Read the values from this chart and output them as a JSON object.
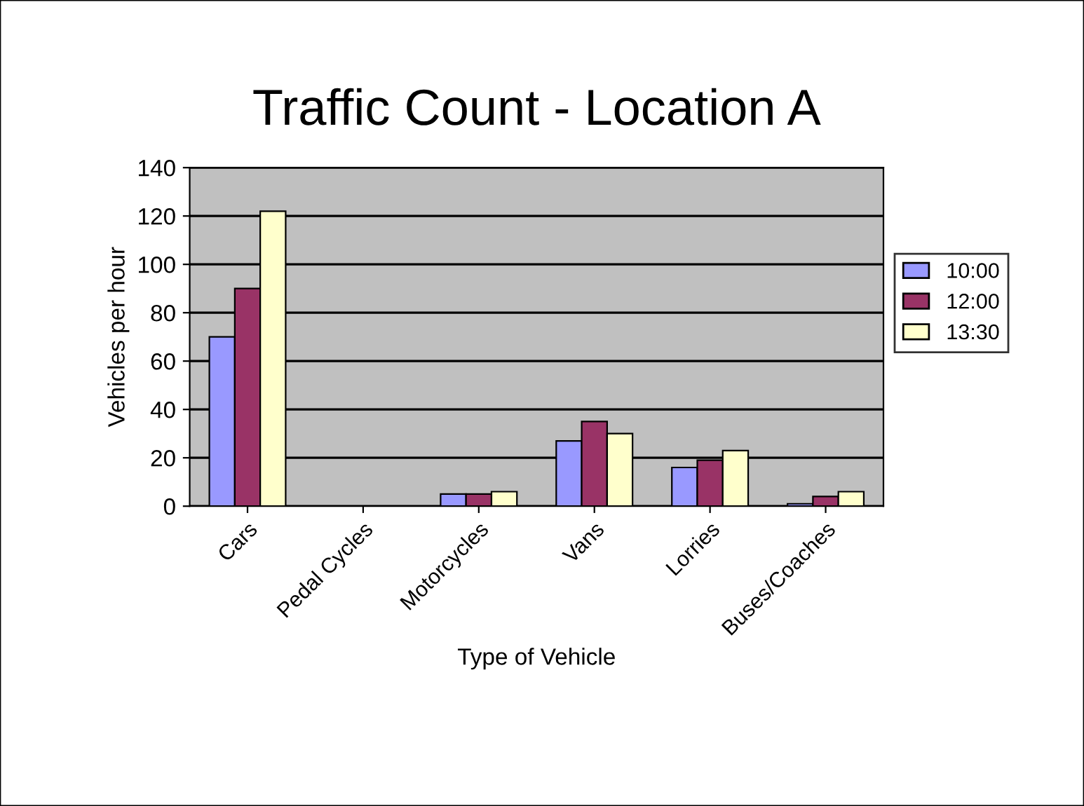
{
  "chart_data": {
    "type": "bar",
    "title": "Traffic Count - Location A",
    "xlabel": "Type of Vehicle",
    "ylabel": "Vehicles per hour",
    "categories": [
      "Cars",
      "Pedal Cycles",
      "Motorcycles",
      "Vans",
      "Lorries",
      "Buses/Coaches"
    ],
    "series": [
      {
        "name": "10:00",
        "color": "#9999ff",
        "values": [
          70,
          null,
          5,
          27,
          16,
          1
        ]
      },
      {
        "name": "12:00",
        "color": "#993366",
        "values": [
          90,
          null,
          5,
          35,
          19,
          4
        ]
      },
      {
        "name": "13:30",
        "color": "#ffffcc",
        "values": [
          122,
          null,
          6,
          30,
          23,
          6
        ]
      }
    ],
    "ylim": [
      0,
      140
    ],
    "yticks": [
      0,
      20,
      40,
      60,
      80,
      100,
      120,
      140
    ],
    "grid": "y",
    "legend": "right"
  }
}
